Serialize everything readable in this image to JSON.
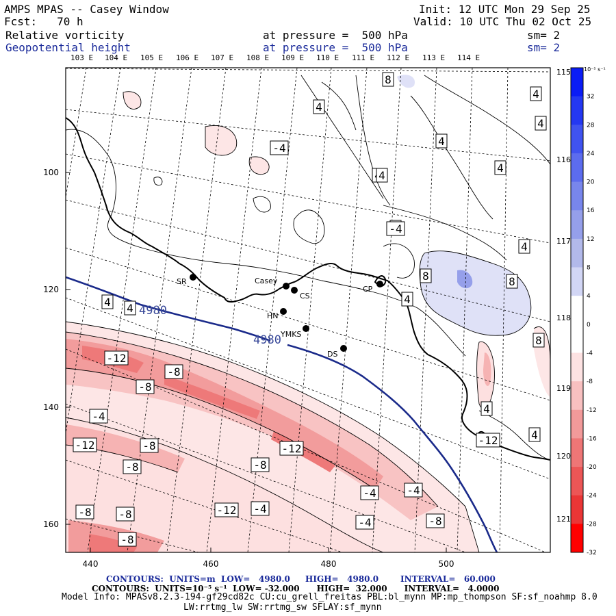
{
  "header": {
    "title": "AMPS MPAS -- Casey Window",
    "init": "Init: 12 UTC Mon 29 Sep 25",
    "fcst": "Fcst:   70 h",
    "valid": "Valid: 10 UTC Thu 02 Oct 25",
    "field1": "Relative vorticity",
    "field2": "Geopotential height",
    "pressure1": "at pressure =  500 hPa",
    "pressure2": "at pressure =  500 hPa",
    "sm1": "sm= 2",
    "sm2": "sm= 2"
  },
  "top_lon_labels": [
    "103 E",
    "104 E",
    "105 E",
    "106 E",
    "107 E",
    "108 E",
    "109 E",
    "110 E",
    "111 E",
    "112 E",
    "113 E",
    "114 E"
  ],
  "right_lon_labels": [
    "115 E",
    "116 E",
    "117 E",
    "118 E",
    "119 E",
    "120 E",
    "121 E"
  ],
  "x_ticks": [
    "440",
    "460",
    "480",
    "500"
  ],
  "y_ticks": [
    "100",
    "120",
    "140",
    "160"
  ],
  "stations": [
    {
      "id": "SR",
      "label": "SR"
    },
    {
      "id": "casey",
      "label": "Casey"
    },
    {
      "id": "CS",
      "label": "CS"
    },
    {
      "id": "CP",
      "label": "CP"
    },
    {
      "id": "HN",
      "label": "HN"
    },
    {
      "id": "YMKS",
      "label": "YMKS"
    },
    {
      "id": "DS",
      "label": "DS"
    }
  ],
  "height_contour_label": "4980",
  "colorbar": {
    "unit": "10⁻⁵ s⁻¹",
    "labels": [
      "32",
      "28",
      "24",
      "20",
      "16",
      "12",
      "8",
      "4",
      "0",
      "-4",
      "-8",
      "-12",
      "-16",
      "-20",
      "-24",
      "-28",
      "-32"
    ],
    "colors": [
      "#0b1cf5",
      "#2438f2",
      "#4053f0",
      "#5c6cee",
      "#7886ec",
      "#959fea",
      "#b2b9ea",
      "#d2d6f5",
      "#ffffff",
      "#ffffff",
      "#fde2e2",
      "#f8c0c0",
      "#f29a9a",
      "#ee7676",
      "#ec5656",
      "#ea3636",
      "#ff0000"
    ]
  },
  "vorticity_labels": [
    "8",
    "4",
    "4",
    "4",
    "4",
    "4",
    "-4",
    "4",
    "4",
    "4",
    "4",
    "8",
    "8",
    "4",
    "4",
    "8",
    "4",
    "4",
    "-12",
    "-8",
    "-8",
    "-4",
    "-12",
    "-8",
    "-8",
    "-12",
    "-8",
    "-4",
    "-4",
    "-12",
    "-4",
    "-8",
    "-8",
    "-8",
    "-4",
    "-8",
    "-12",
    "-4",
    "4"
  ],
  "footer": {
    "line1_a": "CONTOURS:  UNITS=m  LOW=   4980.0",
    "line1_b": "HIGH=   4980.0",
    "line1_c": "INTERVAL=   60.000",
    "line2": "CONTOURS:  UNITS=10⁻⁵ s⁻¹  LOW= -32.000      HIGH=  32.000      INTERVAL=   4.0000",
    "line3": "Model Info: MPASv8.2.3-194-gf29cd82c CU:cu_grell_freitas PBL:bl_mynn MP:mp_thompson SF:sf_noahmp 8.0",
    "line4": "LW:rrtmg_lw SW:rrtmg_sw SFLAY:sf_mynn"
  }
}
